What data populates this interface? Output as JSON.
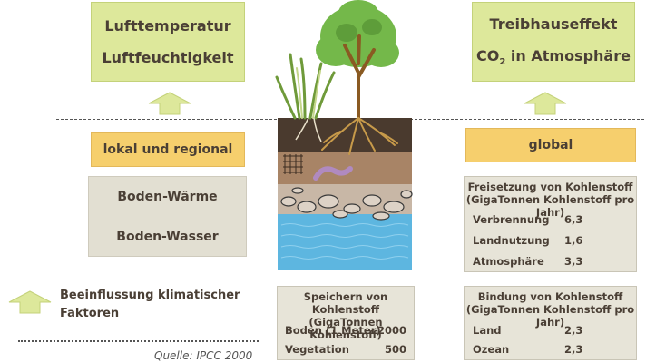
{
  "top_left": {
    "line1": "Lufttemperatur",
    "line2": "Luftfeuchtigkeit"
  },
  "top_right": {
    "line1": "Treibhauseffekt",
    "line2_prefix": "CO",
    "line2_sub": "2",
    "line2_suffix": " in Atmosphäre"
  },
  "scope_left": "lokal und regional",
  "scope_right": "global",
  "soil_box": {
    "line1": "Boden-Wärme",
    "line2": "Boden-Wasser"
  },
  "release": {
    "title1": "Freisetzung von Kohlenstoff",
    "title2": "(GigaTonnen Kohlenstoff pro Jahr)",
    "rows": [
      {
        "label": "Verbrennung",
        "value": "6,3"
      },
      {
        "label": "Landnutzung",
        "value": "1,6"
      },
      {
        "label": "Atmosphäre",
        "value": "3,3"
      }
    ]
  },
  "storage": {
    "title1": "Speichern von Kohlenstoff",
    "title2": "(GigaTonnen Kohlenstoff)",
    "rows": [
      {
        "label": "Boden (1 Meter)",
        "value": "2000"
      },
      {
        "label": "Vegetation",
        "value": "500"
      }
    ]
  },
  "binding": {
    "title1": "Bindung von Kohlenstoff",
    "title2": "(GigaTonnen Kohlenstoff pro Jahr)",
    "rows": [
      {
        "label": "Land",
        "value": "2,3"
      },
      {
        "label": "Ozean",
        "value": "2,3"
      }
    ]
  },
  "legend": {
    "line1": "Beeinflussung klimatischer",
    "line2": "Faktoren"
  },
  "source": "Quelle: IPCC 2000",
  "colors": {
    "arrow": "#dde89b",
    "green_box": "#dde89b",
    "orange_box": "#f6cf6d",
    "info_box": "#e7e4d8"
  }
}
